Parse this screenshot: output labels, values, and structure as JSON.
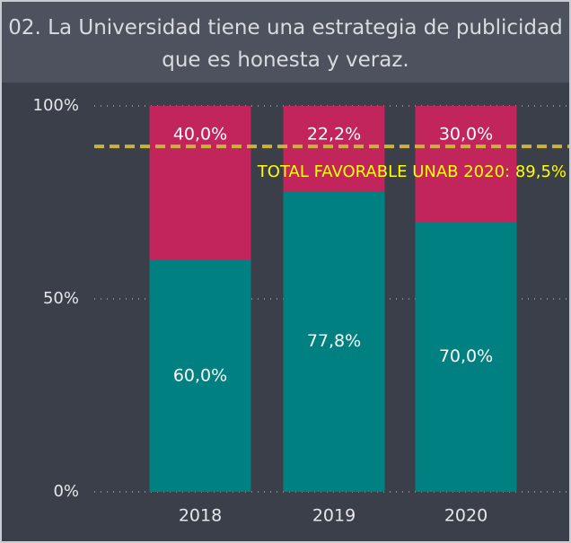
{
  "chart_data": {
    "type": "bar",
    "stacked": true,
    "title": "02. La Universidad tiene una estrategia de publicidad que es honesta y veraz.",
    "categories": [
      "2018",
      "2019",
      "2020"
    ],
    "series": [
      {
        "color": "#008080",
        "values": [
          60.0,
          77.8,
          70.0
        ],
        "value_labels": [
          "60,0%",
          "77,8%",
          "70,0%"
        ]
      },
      {
        "color": "#c2255c",
        "values": [
          40.0,
          22.2,
          30.0
        ],
        "value_labels": [
          "40,0%",
          "22,2%",
          "30,0%"
        ]
      }
    ],
    "ylim": [
      0,
      100
    ],
    "yticks": [
      {
        "value": 0,
        "label": "0%"
      },
      {
        "value": 50,
        "label": "50%"
      },
      {
        "value": 100,
        "label": "100%"
      }
    ],
    "grid": true,
    "reference_line": {
      "value": 89.5,
      "label": "TOTAL FAVORABLE UNAB 2020: 89,5%",
      "color": "#c8b43a",
      "label_color": "#ffff00"
    }
  }
}
